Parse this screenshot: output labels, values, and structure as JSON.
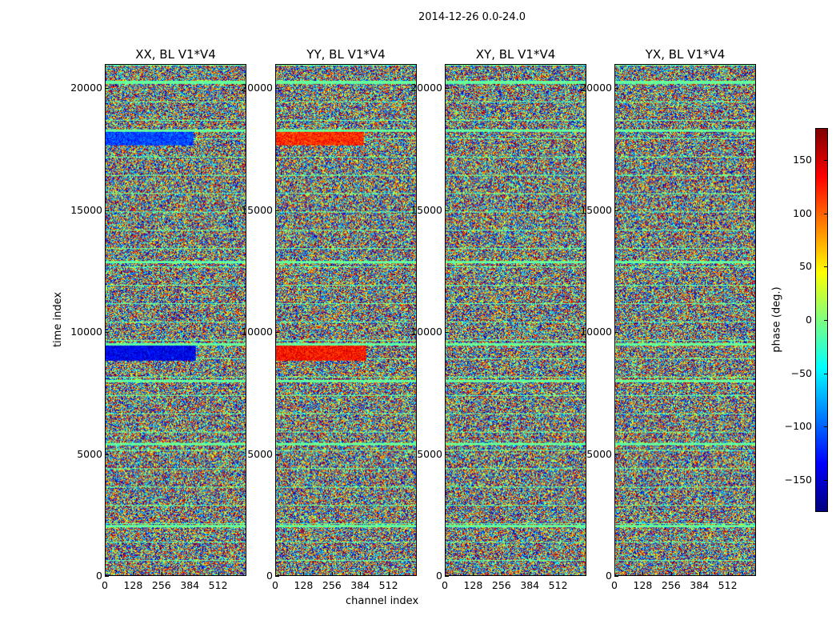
{
  "chart_data": {
    "type": "heatmap",
    "title": "2014-12-26 0.0-24.0",
    "xlabel": "channel index",
    "ylabel": "time index",
    "xlim": [
      0,
      640
    ],
    "ylim": [
      0,
      21000
    ],
    "x_ticks": [
      0,
      128,
      256,
      384,
      512
    ],
    "x_tick_labels": [
      "0",
      "128",
      "256",
      "384",
      "512"
    ],
    "y_ticks": [
      0,
      5000,
      10000,
      15000,
      20000
    ],
    "y_tick_labels": [
      "0",
      "5000",
      "10000",
      "15000",
      "20000"
    ],
    "panels": [
      {
        "title": "XX, BL V1*V4"
      },
      {
        "title": "YY, BL V1*V4"
      },
      {
        "title": "XY, BL V1*V4"
      },
      {
        "title": "YX, BL V1*V4"
      }
    ],
    "colorbar": {
      "label": "phase (deg.)",
      "range": [
        -180,
        180
      ],
      "ticks": [
        -150,
        -100,
        -50,
        0,
        50,
        100,
        150
      ],
      "tick_labels": [
        "−150",
        "−100",
        "−50",
        "0",
        "50",
        "100",
        "150"
      ],
      "colormap": "jet"
    },
    "features": {
      "flag_rows": [
        2050,
        5400,
        8000,
        9500,
        12900,
        18300,
        20300
      ],
      "bright_bands": [
        {
          "panel": 0,
          "t0": 8850,
          "t1": 9450,
          "c0": 0,
          "c1": 410,
          "phase": -140
        },
        {
          "panel": 0,
          "t0": 17700,
          "t1": 18250,
          "c0": 0,
          "c1": 400,
          "phase": -110
        },
        {
          "panel": 1,
          "t0": 8850,
          "t1": 9450,
          "c0": 0,
          "c1": 410,
          "phase": 130
        },
        {
          "panel": 1,
          "t0": 17700,
          "t1": 18250,
          "c0": 0,
          "c1": 400,
          "phase": 120
        }
      ]
    }
  }
}
